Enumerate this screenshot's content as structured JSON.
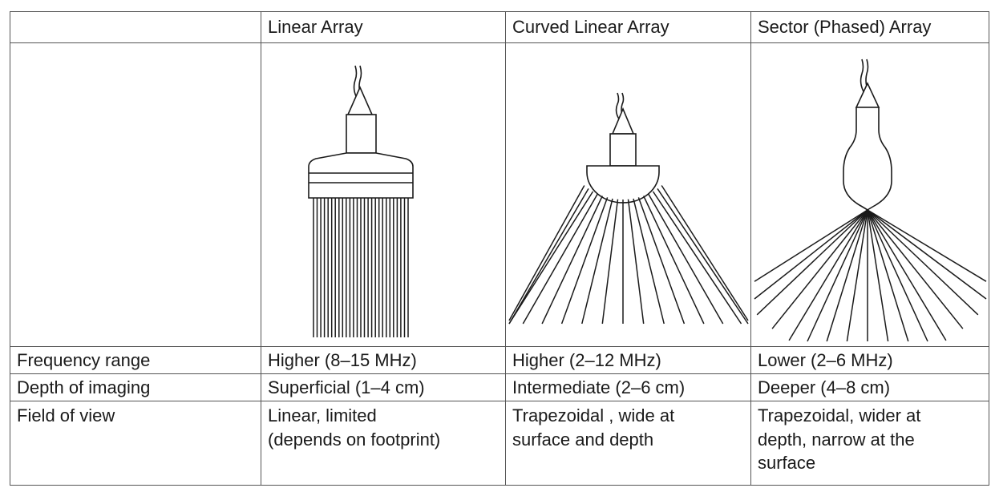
{
  "columns": [
    "",
    "Linear Array",
    "Curved Linear Array",
    "Sector (Phased) Array"
  ],
  "rows": [
    {
      "label": "Frequency range",
      "values": [
        "Higher (8–15 MHz)",
        "Higher (2–12 MHz)",
        "Lower (2–6 MHz)"
      ]
    },
    {
      "label": "Depth of imaging",
      "values": [
        "Superficial (1–4 cm)",
        "Intermediate (2–6 cm)",
        "Deeper (4–8 cm)"
      ]
    },
    {
      "label": "Field of view",
      "values": [
        "Linear, limited\n(depends on footprint)",
        "Trapezoidal , wide at\nsurface and depth",
        "Trapezoidal, wider at\ndepth, narrow at the\nsurface"
      ]
    }
  ],
  "probes": [
    {
      "type": "linear",
      "beam_count": 27
    },
    {
      "type": "curved",
      "beam_count": 17
    },
    {
      "type": "sector",
      "beam_count": 17
    }
  ],
  "colors": {
    "line": "#1a1a1a",
    "border": "#555555"
  }
}
